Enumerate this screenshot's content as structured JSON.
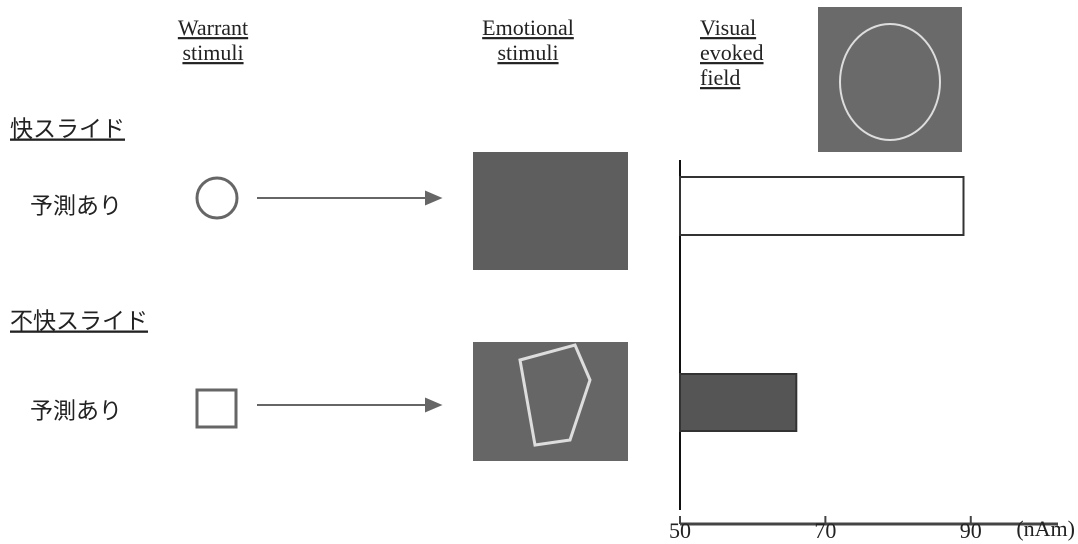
{
  "columns": [
    [
      "Warrant",
      "stimuli"
    ],
    [
      "Emotional",
      "stimuli"
    ],
    [
      "Visual",
      "evoked",
      "field"
    ]
  ],
  "groups": [
    "快スライド",
    "不快スライド"
  ],
  "chart_data": {
    "type": "bar",
    "orientation": "horizontal",
    "categories": [
      "予測あり",
      "予測あり"
    ],
    "values": [
      89,
      66
    ],
    "colors": [
      "#ffffff",
      "#555555"
    ],
    "xlim": [
      50,
      102
    ],
    "xticks": [
      50,
      70,
      90
    ],
    "unit": "(nAm)"
  }
}
